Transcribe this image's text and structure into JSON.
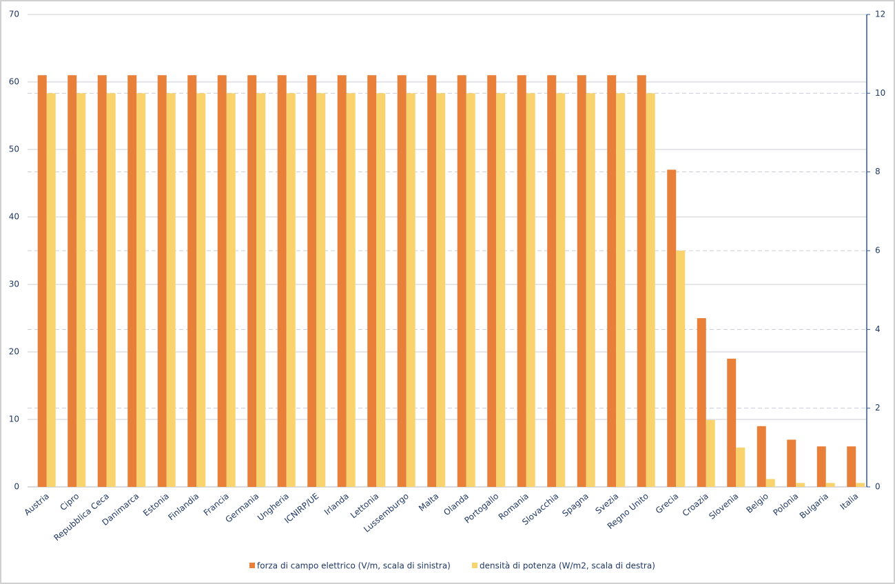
{
  "chart_data": {
    "type": "bar",
    "categories": [
      "Austria",
      "Cipro",
      "Repubblica Ceca",
      "Danimarca",
      "Estonia",
      "Finlandia",
      "Francia",
      "Germania",
      "Ungheria",
      "ICNIRP/UE",
      "Irlanda",
      "Lettonia",
      "Lussemburgo",
      "Malta",
      "Olanda",
      "Portogallo",
      "Romania",
      "Slovacchia",
      "Spagna",
      "Svezia",
      "Regno Unito",
      "Grecia",
      "Croazia",
      "Slovenia",
      "Belgio",
      "Polonia",
      "Bulgaria",
      "Italia"
    ],
    "series": [
      {
        "name": "forza di campo elettrico (V/m, scala di sinistra)",
        "color": "#e8803a",
        "values": [
          61,
          61,
          61,
          61,
          61,
          61,
          61,
          61,
          61,
          61,
          61,
          61,
          61,
          61,
          61,
          61,
          61,
          61,
          61,
          61,
          61,
          47,
          25,
          19,
          9,
          7,
          6,
          6
        ]
      },
      {
        "name": "densità di potenza (W/m2, scala di destra)",
        "color": "#f9d46e",
        "axis": "y2",
        "values": [
          10,
          10,
          10,
          10,
          10,
          10,
          10,
          10,
          10,
          10,
          10,
          10,
          10,
          10,
          10,
          10,
          10,
          10,
          10,
          10,
          10,
          6,
          1.7,
          1,
          0.2,
          0.1,
          0.1,
          0.1
        ]
      }
    ],
    "ylim": [
      0,
      70
    ],
    "yticks": [
      0,
      10,
      20,
      30,
      40,
      50,
      60,
      70
    ],
    "y2lim": [
      0,
      12
    ],
    "y2ticks": [
      0,
      2,
      4,
      6,
      8,
      10,
      12
    ],
    "grid": true,
    "legend": "bottom"
  }
}
